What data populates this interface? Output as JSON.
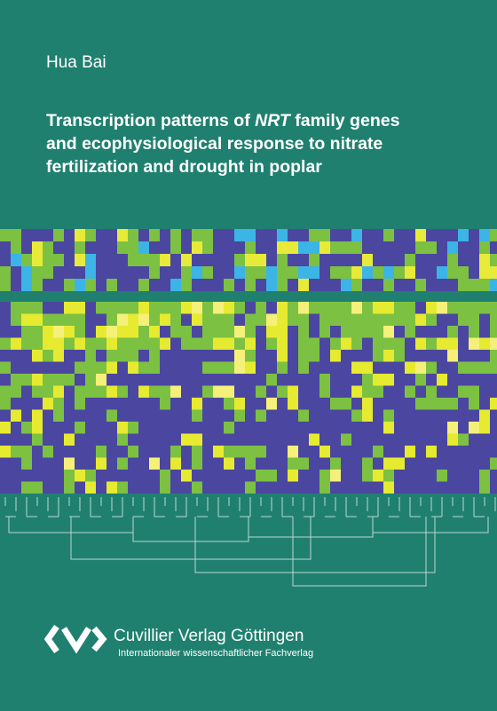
{
  "author": "Hua Bai",
  "title": {
    "line1": [
      "Transcription patterns of",
      "NRT",
      "family genes"
    ],
    "line2": "and ecophysiological response to nitrate",
    "line3": "fertilization and drought in poplar"
  },
  "publisher": {
    "name": "Cuvillier Verlag Göttingen",
    "tagline": "Internationaler wissenschaftlicher Fachverlag"
  }
}
